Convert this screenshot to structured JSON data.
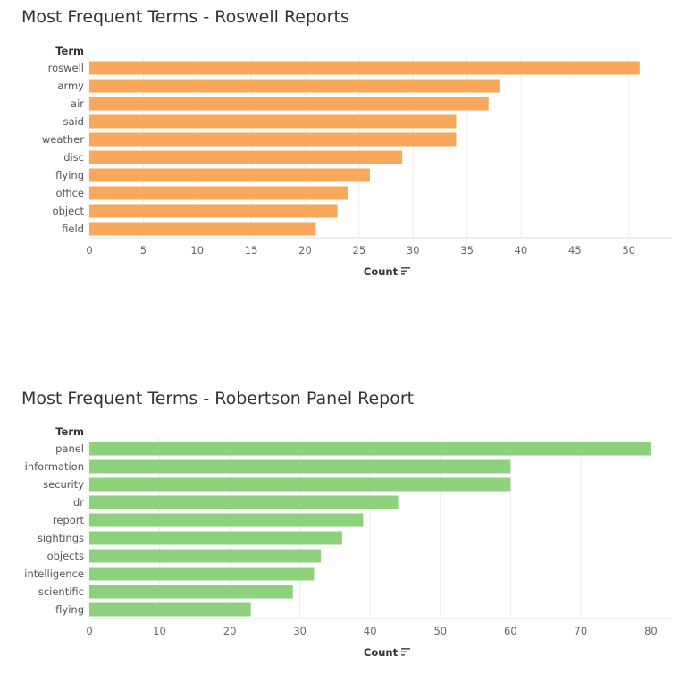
{
  "chart_data": [
    {
      "type": "bar",
      "orientation": "horizontal",
      "title": "Most Frequent Terms - Roswell Reports",
      "ylabel": "Term",
      "xlabel": "Count",
      "categories": [
        "roswell",
        "army",
        "air",
        "said",
        "weather",
        "disc",
        "flying",
        "office",
        "object",
        "field"
      ],
      "values": [
        51,
        38,
        37,
        34,
        34,
        29,
        26,
        24,
        23,
        21
      ],
      "xlim": [
        0,
        54
      ],
      "xticks": [
        0,
        5,
        10,
        15,
        20,
        25,
        30,
        35,
        40,
        45,
        50
      ],
      "grid": true,
      "color": "#f8a85a"
    },
    {
      "type": "bar",
      "orientation": "horizontal",
      "title": "Most Frequent Terms - Robertson Panel Report",
      "ylabel": "Term",
      "xlabel": "Count",
      "categories": [
        "panel",
        "information",
        "security",
        "dr",
        "report",
        "sightings",
        "objects",
        "intelligence",
        "scientific",
        "flying"
      ],
      "values": [
        80,
        60,
        60,
        44,
        39,
        36,
        33,
        32,
        29,
        23
      ],
      "xlim": [
        0,
        83
      ],
      "xticks": [
        0,
        10,
        20,
        30,
        40,
        50,
        60,
        70,
        80
      ],
      "grid": true,
      "color": "#8dd17c"
    }
  ],
  "sort_icon": "sort-descending-icon"
}
